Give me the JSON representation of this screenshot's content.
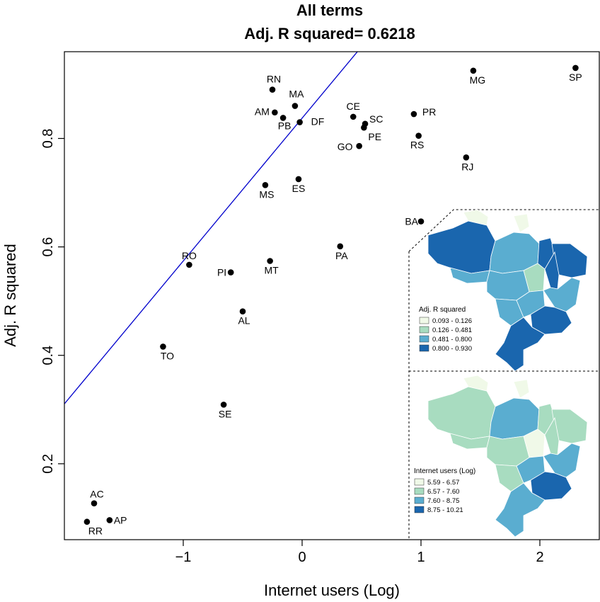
{
  "chart_data": {
    "type": "scatter",
    "title": "All terms",
    "subtitle": "Adj. R squared= 0.6218",
    "xlabel": "Internet users (Log)",
    "ylabel": "Adj. R squared",
    "xlim": [
      -2.0,
      2.5
    ],
    "ylim": [
      0.06,
      0.96
    ],
    "xticks": [
      -1,
      0,
      1,
      2
    ],
    "xtick_labels": [
      "−1",
      "0",
      "1",
      "2"
    ],
    "yticks": [
      0.2,
      0.4,
      0.6,
      0.8
    ],
    "ytick_labels": [
      "0.2",
      "0.4",
      "0.6",
      "0.8"
    ],
    "grid": false,
    "points": [
      {
        "label": "SP",
        "x": 2.3,
        "y": 0.93
      },
      {
        "label": "MG",
        "x": 1.44,
        "y": 0.925
      },
      {
        "label": "RN",
        "x": -0.25,
        "y": 0.89
      },
      {
        "label": "MA",
        "x": -0.06,
        "y": 0.86
      },
      {
        "label": "AM",
        "x": -0.23,
        "y": 0.848
      },
      {
        "label": "PB",
        "x": -0.16,
        "y": 0.838
      },
      {
        "label": "DF",
        "x": -0.02,
        "y": 0.83
      },
      {
        "label": "CE",
        "x": 0.43,
        "y": 0.84
      },
      {
        "label": "SC",
        "x": 0.53,
        "y": 0.827
      },
      {
        "label": "PE",
        "x": 0.52,
        "y": 0.82
      },
      {
        "label": "PR",
        "x": 0.94,
        "y": 0.845
      },
      {
        "label": "GO",
        "x": 0.48,
        "y": 0.786
      },
      {
        "label": "RS",
        "x": 0.98,
        "y": 0.805
      },
      {
        "label": "RJ",
        "x": 1.38,
        "y": 0.765
      },
      {
        "label": "ES",
        "x": -0.03,
        "y": 0.725
      },
      {
        "label": "MS",
        "x": -0.31,
        "y": 0.714
      },
      {
        "label": "BA",
        "x": 1.0,
        "y": 0.647
      },
      {
        "label": "PA",
        "x": 0.32,
        "y": 0.601
      },
      {
        "label": "RO",
        "x": -0.95,
        "y": 0.567
      },
      {
        "label": "MT",
        "x": -0.27,
        "y": 0.574
      },
      {
        "label": "PI",
        "x": -0.6,
        "y": 0.553
      },
      {
        "label": "AL",
        "x": -0.5,
        "y": 0.481
      },
      {
        "label": "TO",
        "x": -1.17,
        "y": 0.416
      },
      {
        "label": "SE",
        "x": -0.66,
        "y": 0.309
      },
      {
        "label": "AC",
        "x": -1.75,
        "y": 0.127
      },
      {
        "label": "AP",
        "x": -1.62,
        "y": 0.096
      },
      {
        "label": "RR",
        "x": -1.81,
        "y": 0.093
      }
    ],
    "fit_line": {
      "intercept": 0.8375,
      "slope": 0.2635,
      "color": "#0000cc"
    },
    "inset_maps": [
      {
        "legend_title": "Adj. R squared",
        "legend": [
          {
            "label": "0.093 - 0.126",
            "color": "#f0f9e8"
          },
          {
            "label": "0.126 - 0.481",
            "color": "#a8dcc0"
          },
          {
            "label": "0.481 - 0.800",
            "color": "#5aadd0"
          },
          {
            "label": "0.800 - 0.930",
            "color": "#1a66ae"
          }
        ]
      },
      {
        "legend_title": "Internet users (Log)",
        "legend": [
          {
            "label": "5.59 - 6.57",
            "color": "#f0f9e8"
          },
          {
            "label": "6.57 - 7.60",
            "color": "#a8dcc0"
          },
          {
            "label": "7.60 - 8.75",
            "color": "#5aadd0"
          },
          {
            "label": "8.75 - 10.21",
            "color": "#1a66ae"
          }
        ]
      }
    ]
  }
}
